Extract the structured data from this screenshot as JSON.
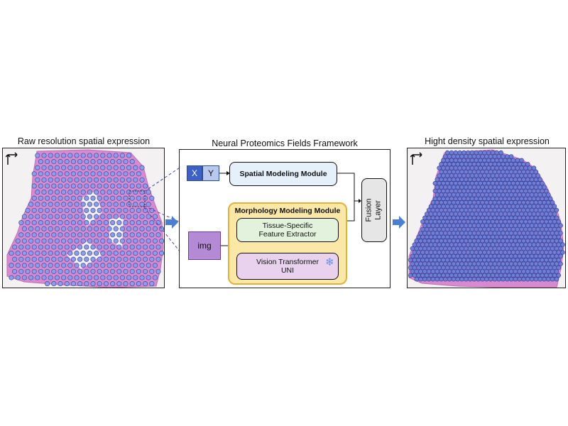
{
  "titles": {
    "left": "Raw resolution spatial expression",
    "middle": "Neural Proteomics Fields Framework",
    "right": "Hight density spatial expression"
  },
  "framework": {
    "x_label": "X",
    "y_label": "Y",
    "img_label": "img",
    "spatial_module": "Spatial Modeling Module",
    "morphology_module": "Morphology Modeling Module",
    "feature_extractor_line1": "Tissue-Specific",
    "feature_extractor_line2": "Feature Extractor",
    "vit_line1": "Vision Transformer",
    "vit_line2": "UNI",
    "fusion_line1": "Fusion",
    "fusion_line2": "Layer"
  },
  "icons": {
    "frozen": "snowflake-icon",
    "axes": "axes-arrow-icon"
  },
  "colors": {
    "tissue": "#d88ad0",
    "spot_fill": "#8f9ce6",
    "spot_stroke": "#3b4aa8",
    "dense_spot": "#6f7fd8",
    "spatial_box": "#e6f0fb",
    "morph_box": "#fbe8a6",
    "morph_border": "#e0b23a",
    "extractor_box": "#e2f2dc",
    "vit_box": "#e8d2ee",
    "img_box": "#b48ad4",
    "xy_dark": "#3b62c4",
    "xy_light": "#b8c8ee",
    "fusion_box": "#e6e6e6",
    "arrow_blue": "#4a7fd4"
  }
}
